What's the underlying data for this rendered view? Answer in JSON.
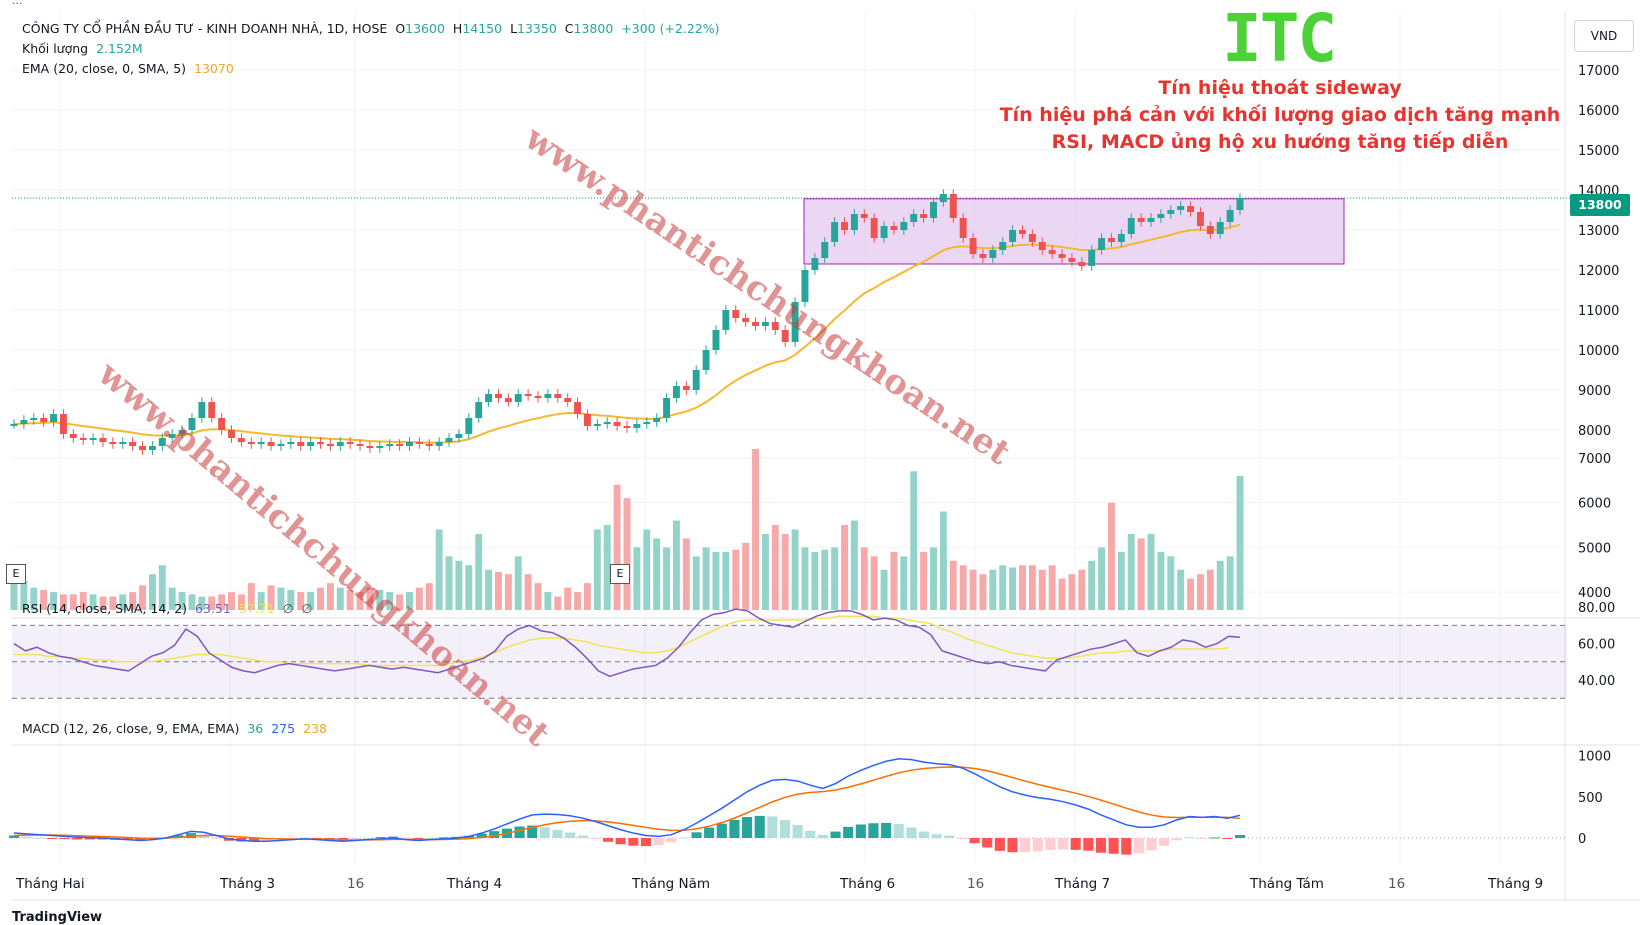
{
  "header": {
    "topbar": "...",
    "company": "CÔNG TY CỔ PHẦN ĐẦU TƯ - KINH DOANH NHÀ, 1D, HOSE",
    "open_label": "O",
    "open": "13600",
    "high_label": "H",
    "high": "14150",
    "low_label": "L",
    "low": "13350",
    "close_label": "C",
    "close": "13800",
    "change": "+300 (+2.22%)",
    "volume_label": "Khối lượng",
    "volume": "2.152M",
    "ema_label": "EMA (20, close, 0, SMA, 5)",
    "ema": "13070"
  },
  "ticker": "ITC",
  "annotations": [
    "Tín hiệu thoát sideway",
    "Tín hiệu phá cản với khối lượng giao dịch tăng mạnh",
    "RSI, MACD ủng hộ xu hướng tăng tiếp diễn"
  ],
  "currency_button": "VND",
  "last_price_tag": "13800",
  "watermark": "www.phantichchungkhoan.net",
  "rsi_legend": {
    "label": "RSI (14, close, SMA, 14, 2)",
    "rsi": "63.51",
    "sma": "57.71",
    "v3": "∅",
    "v4": "∅"
  },
  "macd_legend": {
    "label": "MACD (12, 26, close, 9, EMA, EMA)",
    "hist": "36",
    "macd": "275",
    "signal": "238"
  },
  "earnings_marker": "E",
  "footer": "TradingView",
  "colors": {
    "up": "#26a69a",
    "down": "#ef5350",
    "ema": "#f5b82e",
    "box": "#e3c4f0",
    "rsi": "#7e57c2",
    "macd": "#2962ff",
    "signal": "#ff6d00"
  },
  "chart_data": {
    "type": "candlestick",
    "price_axis": {
      "ticks": [
        17000,
        16000,
        15000,
        14000,
        13000,
        12000,
        11000,
        10000,
        9000,
        8000,
        7000,
        6000,
        5000,
        4000
      ]
    },
    "x_labels": [
      "Tháng Hai",
      "Tháng 3",
      "16",
      "Tháng 4",
      "Tháng Năm",
      "Tháng 6",
      "16",
      "Tháng 7",
      "Tháng Tám",
      "16",
      "Tháng 9"
    ],
    "sideway_box": {
      "price_low": 12150,
      "price_high": 13780
    },
    "close_path": [
      8150,
      8250,
      8300,
      8200,
      8400,
      7900,
      7800,
      7750,
      7800,
      7700,
      7650,
      7700,
      7600,
      7500,
      7600,
      7800,
      7900,
      8000,
      8300,
      8700,
      8300,
      8000,
      7800,
      7700,
      7650,
      7700,
      7600,
      7650,
      7700,
      7600,
      7700,
      7650,
      7600,
      7700,
      7650,
      7600,
      7550,
      7600,
      7650,
      7600,
      7700,
      7650,
      7600,
      7700,
      7800,
      7900,
      8300,
      8700,
      8900,
      8800,
      8700,
      8900,
      8850,
      8800,
      8900,
      8800,
      8700,
      8400,
      8100,
      8150,
      8200,
      8100,
      8050,
      8150,
      8200,
      8300,
      8800,
      9100,
      9000,
      9500,
      10000,
      10500,
      11000,
      10800,
      10700,
      10600,
      10700,
      10500,
      10200,
      11200,
      12000,
      12300,
      12700,
      13200,
      13000,
      13400,
      13300,
      12800,
      13100,
      13000,
      13200,
      13400,
      13300,
      13700,
      13900,
      13300,
      12800,
      12400,
      12300,
      12500,
      12700,
      13000,
      12900,
      12700,
      12500,
      12400,
      12300,
      12200,
      12100,
      12500,
      12800,
      12700,
      12900,
      13300,
      13200,
      13300,
      13400,
      13500,
      13600,
      13450,
      13100,
      12900,
      13200,
      13500,
      13800
    ],
    "volume_levels": [
      4300,
      4250,
      4100,
      4050,
      4000,
      3950,
      3950,
      4000,
      3950,
      3900,
      3900,
      3950,
      4000,
      4150,
      4400,
      4600,
      4100,
      4000,
      3950,
      3900,
      3900,
      3950,
      4000,
      3950,
      4200,
      4000,
      4150,
      4100,
      4050,
      4000,
      4000,
      4100,
      4200,
      4100,
      4050,
      4000,
      4100,
      4050,
      4000,
      3950,
      4000,
      4100,
      4200,
      5400,
      4800,
      4700,
      4600,
      5300,
      4500,
      4450,
      4400,
      4800,
      4400,
      4200,
      4000,
      3900,
      4100,
      4000,
      4200,
      5400,
      5500,
      6400,
      6100,
      5000,
      5400,
      5200,
      5000,
      5600,
      5200,
      4800,
      5000,
      4900,
      4900,
      4950,
      5100,
      7200,
      5300,
      5500,
      5300,
      5400,
      5000,
      4900,
      4950,
      5000,
      5500,
      5600,
      5000,
      4800,
      4500,
      4900,
      4800,
      6700,
      4900,
      5000,
      5800,
      4700,
      4600,
      4500,
      4400,
      4500,
      4600,
      4550,
      4600,
      4600,
      4500,
      4600,
      4300,
      4400,
      4500,
      4700,
      5000,
      6000,
      4900,
      5300,
      5200,
      5300,
      4900,
      4800,
      4500,
      4300,
      4400,
      4500,
      4700,
      4800,
      6600
    ],
    "rsi_ticks": [
      80,
      60,
      40
    ],
    "rsi_band": [
      30,
      70
    ],
    "rsi_values": [
      60,
      56,
      58,
      55,
      53,
      52,
      50,
      48,
      47,
      46,
      45,
      49,
      53,
      55,
      59,
      68,
      64,
      55,
      51,
      47,
      45,
      44,
      46,
      48,
      49,
      48,
      47,
      46,
      45,
      46,
      47,
      48,
      47,
      46,
      47,
      46,
      45,
      44,
      46,
      48,
      50,
      52,
      56,
      64,
      68,
      70,
      67,
      66,
      63,
      58,
      52,
      45,
      42,
      44,
      46,
      47,
      48,
      52,
      58,
      66,
      73,
      76,
      77,
      79,
      78,
      74,
      71,
      70,
      69,
      72,
      75,
      77,
      78,
      78,
      76,
      73,
      74,
      73,
      70,
      69,
      65,
      56,
      54,
      52,
      50,
      49,
      50,
      48,
      47,
      46,
      45,
      51,
      53,
      55,
      57,
      58,
      60,
      62,
      55,
      53,
      56,
      58,
      62,
      61,
      58,
      60,
      64,
      63.51
    ],
    "rsi_sma": [
      54,
      54,
      54,
      53,
      53,
      52,
      52,
      51,
      51,
      50,
      50,
      50,
      50,
      51,
      52,
      53,
      54,
      54,
      54,
      53,
      52,
      51,
      50,
      50,
      49,
      49,
      49,
      49,
      49,
      49,
      49,
      48,
      48,
      48,
      48,
      48,
      48,
      48,
      49,
      50,
      51,
      53,
      55,
      58,
      60,
      62,
      63,
      63,
      63,
      62,
      61,
      59,
      58,
      57,
      56,
      55,
      55,
      56,
      58,
      61,
      64,
      67,
      70,
      72,
      73,
      73,
      73,
      73,
      73,
      73,
      74,
      74,
      75,
      75,
      75,
      75,
      74,
      74,
      73,
      72,
      71,
      68,
      66,
      63,
      61,
      59,
      57,
      55,
      54,
      53,
      52,
      52,
      52,
      53,
      54,
      55,
      55,
      56,
      56,
      56,
      56,
      57,
      57,
      57,
      57,
      57,
      57.71
    ],
    "macd_ticks": [
      1000,
      500,
      0
    ],
    "macd_line": [
      60,
      50,
      40,
      30,
      20,
      10,
      5,
      0,
      -10,
      -20,
      -30,
      -20,
      0,
      40,
      80,
      70,
      30,
      -10,
      -30,
      -40,
      -40,
      -30,
      -20,
      -10,
      -20,
      -30,
      -40,
      -30,
      -20,
      -10,
      0,
      -20,
      -30,
      -20,
      -10,
      0,
      20,
      60,
      110,
      170,
      230,
      280,
      290,
      285,
      270,
      240,
      200,
      150,
      100,
      60,
      30,
      20,
      40,
      100,
      180,
      270,
      360,
      460,
      560,
      640,
      700,
      710,
      690,
      640,
      600,
      660,
      750,
      820,
      880,
      930,
      960,
      950,
      920,
      900,
      890,
      850,
      780,
      700,
      620,
      560,
      520,
      490,
      470,
      440,
      400,
      350,
      280,
      220,
      160,
      130,
      130,
      160,
      220,
      260,
      250,
      260,
      240,
      275
    ],
    "macd_signal": [
      30,
      35,
      37,
      36,
      33,
      28,
      23,
      18,
      12,
      6,
      -1,
      -3,
      -2,
      6,
      21,
      31,
      31,
      23,
      12,
      2,
      -7,
      -11,
      -13,
      -12,
      -14,
      -17,
      -22,
      -24,
      -23,
      -21,
      -17,
      -17,
      -20,
      -20,
      -18,
      -14,
      -7,
      6,
      27,
      56,
      91,
      129,
      161,
      186,
      203,
      210,
      208,
      196,
      176,
      153,
      128,
      106,
      93,
      94,
      111,
      143,
      186,
      241,
      305,
      372,
      438,
      492,
      532,
      553,
      562,
      582,
      615,
      656,
      701,
      747,
      790,
      822,
      842,
      854,
      861,
      859,
      843,
      815,
      776,
      733,
      690,
      650,
      614,
      579,
      543,
      504,
      459,
      411,
      361,
      315,
      278,
      254,
      248,
      251,
      251,
      253,
      250,
      238
    ]
  }
}
